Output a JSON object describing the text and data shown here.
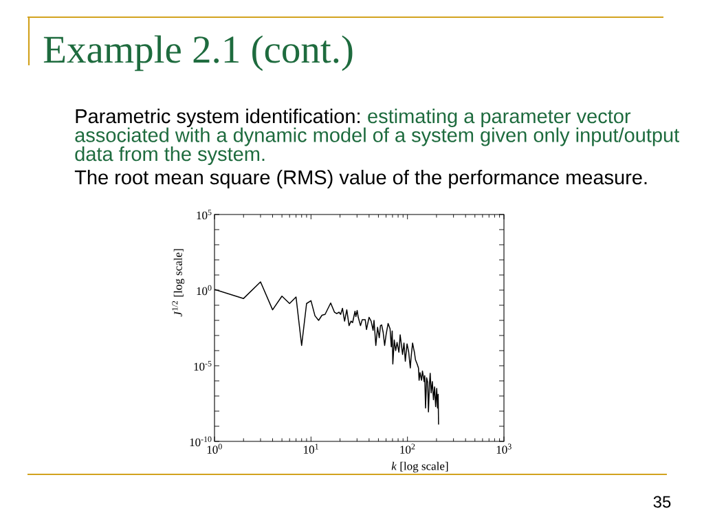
{
  "chart_data": {
    "type": "line",
    "title": "Example 2.1 (cont.)",
    "annotations": [
      "Parametric system identification:",
      "estimating a parameter vector",
      "associated with a dynamic model of a system given only input/output data from the system.",
      "The root mean square (RMS) value of the performance measure.",
      "35"
    ],
    "xlabel": "*k* [log scale]",
    "ylabel": "*J*$^{1/2}$ [log scale]",
    "log": "xy",
    "x": [
      1,
      2,
      3,
      4,
      5,
      6,
      7,
      8,
      9,
      10,
      11,
      12,
      13,
      14,
      16,
      17.5,
      18.5,
      19.5,
      20.3,
      21.2,
      22.3,
      23.5,
      24.8,
      26,
      27,
      28.6,
      29.2,
      30.1,
      30.9,
      32.6,
      34,
      36.5,
      37.6,
      40,
      42,
      44,
      45,
      47,
      49,
      51,
      52.5,
      54,
      56,
      58,
      60,
      63,
      66,
      68,
      69.5,
      70.5,
      73,
      75.5,
      78,
      81.5,
      84,
      89,
      92,
      95,
      99,
      103,
      107,
      109,
      113,
      116,
      118,
      121,
      126,
      130,
      132,
      135,
      140,
      143,
      149,
      151,
      154,
      158,
      162,
      165,
      169,
      172,
      176,
      181,
      186,
      191,
      196,
      201,
      205,
      208,
      210
    ],
    "series": [
      {
        "color": "#000000",
        "values": [
          1.1,
          0.28,
          3.5,
          0.05,
          0.4,
          0.13,
          0.35,
          0.00022,
          0.13,
          0.2,
          0.02,
          0.01,
          0.022,
          0.025,
          0.14,
          0.035,
          0.028,
          0.035,
          0.025,
          0.063,
          0.0089,
          0.05,
          0.0045,
          0.0089,
          0.0071,
          0.04,
          0.018,
          0.045,
          0.016,
          0.0045,
          0.011,
          0.011,
          0.0025,
          0.016,
          0.0089,
          0.0022,
          0.01,
          0.00022,
          0.0035,
          0.00071,
          0.0045,
          0.005,
          0.0016,
          0.00022,
          0.0011,
          0.0063,
          0.0028,
          0.00018,
          0.002,
          1.3e-05,
          0.0005,
          0.0001,
          0.00035,
          7.9e-05,
          0.0011,
          5.6e-05,
          0.00032,
          2e-05,
          0.00028,
          7.9e-05,
          7.1e-06,
          3.5e-05,
          0.00032,
          0.00013,
          7.9e-05,
          2.5e-05,
          1.3e-05,
          7.1e-06,
          1.1e-06,
          3.5e-06,
          1.1e-06,
          4.5e-06,
          8.9e-07,
          2.2e-06,
          1.6e-08,
          1.6e-06,
          7.9e-07,
          8.9e-09,
          5.6e-07,
          3.2e-06,
          1.6e-07,
          8.9e-07,
          5.6e-08,
          4e-07,
          2e-08,
          3.2e-07,
          1.6e-08,
          1.3e-07,
          1.3e-09
        ]
      }
    ],
    "xlim": [
      1,
      1000
    ],
    "ylim": [
      1e-10,
      100000
    ],
    "xticks": [
      {
        "value": 1,
        "label": "10$^{0}$"
      },
      {
        "value": 10,
        "label": "10$^{1}$"
      },
      {
        "value": 100,
        "label": "10$^{2}$"
      },
      {
        "value": 1000,
        "label": "10$^{3}$"
      }
    ],
    "yticks": [
      {
        "value": 1e-10,
        "label": "10$^{-10}$"
      },
      {
        "value": 1e-09,
        "label": null
      },
      {
        "value": 1e-08,
        "label": null
      },
      {
        "value": 1e-07,
        "label": null
      },
      {
        "value": 1e-06,
        "label": null
      },
      {
        "value": 1e-05,
        "label": "10$^{-5}$"
      },
      {
        "value": 0.0001,
        "label": null
      },
      {
        "value": 0.001,
        "label": null
      },
      {
        "value": 0.01,
        "label": null
      },
      {
        "value": 0.1,
        "label": null
      },
      {
        "value": 1,
        "label": "10$^{0}$"
      },
      {
        "value": 10,
        "label": null
      },
      {
        "value": 100,
        "label": null
      },
      {
        "value": 1000,
        "label": null
      },
      {
        "value": 10000,
        "label": null
      },
      {
        "value": 100000,
        "label": "10$^{5}$"
      }
    ],
    "grid": false,
    "legend": false,
    "marker": "none",
    "line_style": "solid"
  }
}
